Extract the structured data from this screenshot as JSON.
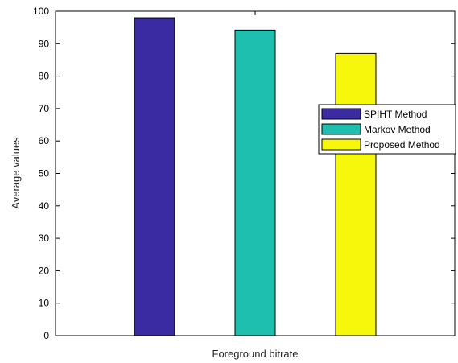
{
  "chart_data": {
    "type": "bar",
    "xlabel": "Foreground bitrate",
    "ylabel": "Average values",
    "ylim": [
      0,
      100
    ],
    "yticks": [
      0,
      10,
      20,
      30,
      40,
      50,
      60,
      70,
      80,
      90,
      100
    ],
    "grid": false,
    "legend_position": "right",
    "series": [
      {
        "name": "SPIHT Method",
        "value": 98,
        "color": "#3a2ba2"
      },
      {
        "name": "Markov Method",
        "value": 94.2,
        "color": "#1fbfb0"
      },
      {
        "name": "Proposed Method",
        "value": 87,
        "color": "#f7f70b"
      }
    ]
  }
}
